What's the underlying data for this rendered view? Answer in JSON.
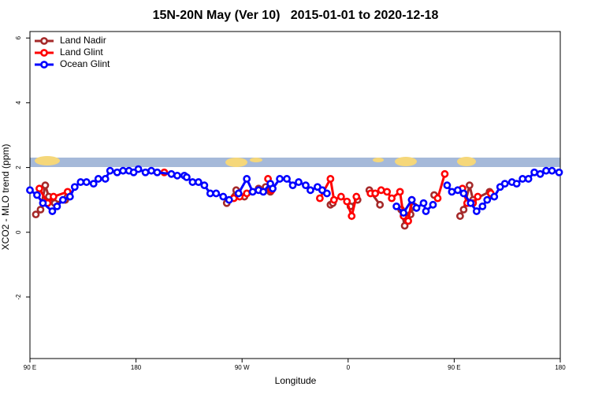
{
  "chart_data": {
    "type": "line",
    "title": "15N-20N May (Ver 10)   2015-01-01 to 2020-12-18",
    "x_label": "Longitude",
    "y_label": "XCO2 - MLO trend (ppm)",
    "xlim": [
      90,
      540
    ],
    "ylim": [
      -3.9,
      6.2
    ],
    "xticks": [
      {
        "value": 90,
        "label": "90 E"
      },
      180,
      {
        "value": 270,
        "label": "90 W"
      },
      {
        "value": 360,
        "label": "0"
      },
      {
        "value": 450,
        "label": "90 E"
      },
      {
        "value": 540,
        "label": "180"
      }
    ],
    "yticks": [
      -2,
      0,
      2,
      4,
      6
    ],
    "legend": "top-left",
    "series": [
      {
        "name": "Land Nadir",
        "color": "#a52a2a",
        "x": [
          95,
          99,
          103,
          106,
          111,
          120,
          122,
          200,
          257,
          265,
          272,
          284,
          290,
          294,
          320,
          345,
          347,
          355,
          362,
          368,
          373,
          378,
          387,
          398,
          405,
          408,
          413,
          416,
          425,
          433,
          445,
          455,
          458,
          463,
          466,
          480
        ],
        "values": [
          0.55,
          0.7,
          1.45,
          1.1,
          0.9,
          1.0,
          1.1,
          null,
          0.9,
          1.3,
          1.1,
          1.35,
          1.4,
          1.25,
          null,
          0.85,
          0.9,
          null,
          0.8,
          1.0,
          null,
          1.3,
          0.85,
          null,
          0.7,
          0.2,
          0.55,
          0.8,
          null,
          1.15,
          null,
          0.5,
          0.7,
          1.45,
          1.0,
          1.25
        ]
      },
      {
        "name": "Land Glint",
        "color": "#ff0000",
        "x": [
          98,
          105,
          110,
          122,
          160,
          204,
          230,
          263,
          268,
          274,
          283,
          292,
          295,
          315,
          336,
          345,
          348,
          354,
          359,
          363,
          367,
          373,
          379,
          383,
          388,
          393,
          397,
          404,
          407,
          411,
          414,
          425,
          436,
          442,
          450,
          457,
          461,
          466,
          470,
          476,
          481
        ],
        "values": [
          1.35,
          0.9,
          1.1,
          1.25,
          null,
          1.85,
          null,
          1.05,
          1.1,
          1.2,
          null,
          1.65,
          1.3,
          null,
          1.05,
          1.65,
          1.0,
          1.1,
          0.95,
          0.5,
          1.1,
          null,
          1.2,
          1.2,
          1.3,
          1.25,
          1.05,
          1.25,
          0.5,
          0.35,
          1.0,
          null,
          1.05,
          1.8,
          null,
          1.35,
          0.9,
          0.9,
          1.1,
          null,
          1.2
        ]
      },
      {
        "name": "Ocean Glint",
        "color": "#0000ff",
        "x": [
          90,
          96,
          101,
          109,
          113,
          118,
          124,
          128,
          133,
          138,
          144,
          148,
          154,
          158,
          164,
          169,
          174,
          178,
          182,
          188,
          193,
          198,
          210,
          215,
          221,
          223,
          228,
          233,
          238,
          243,
          248,
          254,
          259,
          263,
          267,
          274,
          279,
          284,
          288,
          294,
          296,
          302,
          308,
          313,
          318,
          324,
          328,
          334,
          338,
          342,
          370,
          401,
          407,
          414,
          418,
          424,
          426,
          432,
          437,
          444,
          448,
          453,
          458,
          464,
          469,
          474,
          478,
          484,
          489,
          493,
          499,
          503,
          508,
          513,
          518,
          523,
          528,
          533,
          539
        ],
        "values": [
          1.3,
          1.15,
          0.9,
          0.65,
          0.8,
          1.0,
          1.1,
          1.4,
          1.55,
          1.55,
          1.5,
          1.65,
          1.65,
          1.9,
          1.85,
          1.9,
          1.9,
          1.85,
          1.95,
          1.85,
          1.9,
          1.85,
          1.8,
          1.75,
          1.75,
          1.7,
          1.55,
          1.55,
          1.45,
          1.2,
          1.2,
          1.1,
          1.0,
          null,
          1.2,
          1.65,
          1.25,
          1.3,
          1.25,
          1.5,
          1.35,
          1.65,
          1.65,
          1.45,
          1.55,
          1.45,
          1.3,
          1.4,
          1.3,
          1.2,
          null,
          0.8,
          0.6,
          1.0,
          0.75,
          0.9,
          0.65,
          0.85,
          null,
          1.45,
          1.25,
          1.3,
          1.2,
          0.9,
          0.65,
          0.8,
          1.0,
          1.1,
          1.4,
          1.5,
          1.55,
          1.5,
          1.65,
          1.65,
          1.85,
          1.8,
          1.9,
          1.9,
          1.85
        ]
      }
    ]
  }
}
